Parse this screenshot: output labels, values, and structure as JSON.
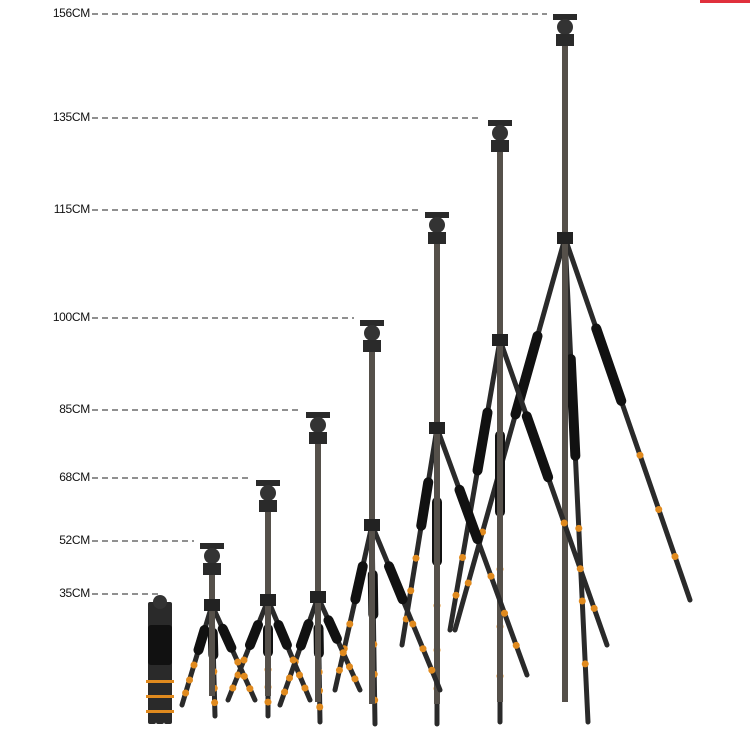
{
  "heights": [
    "156CM",
    "135CM",
    "115CM",
    "100CM",
    "85CM",
    "68CM",
    "52CM",
    "35CM"
  ],
  "colors": {
    "tripod": "#2a2a2a",
    "accent_ring": "#e08a1e",
    "dash": "#222222",
    "corner_bar": "#e0303c"
  }
}
